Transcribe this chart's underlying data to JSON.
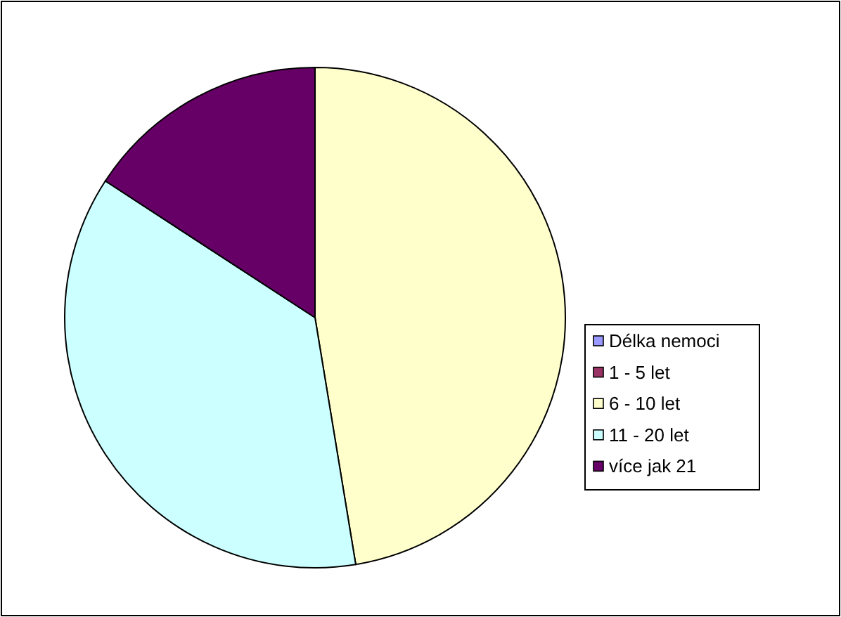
{
  "chart_data": {
    "type": "pie",
    "categories": [
      "Délka nemoci",
      "1 - 5 let",
      "6 - 10 let",
      "11 - 20 let",
      "více jak 21"
    ],
    "values": [
      0,
      0,
      47.4,
      36.8,
      15.8
    ],
    "colors": [
      "#9999ff",
      "#993366",
      "#ffffcc",
      "#ccffff",
      "#660066"
    ],
    "legend": "right"
  }
}
